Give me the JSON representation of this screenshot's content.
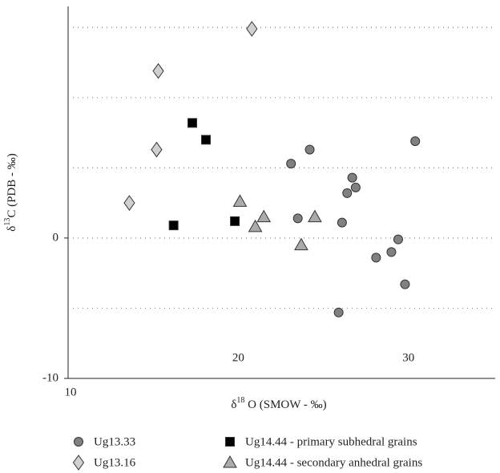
{
  "chart_data": {
    "type": "scatter",
    "x_label": {
      "prefix": "δ",
      "sup": "18",
      "rest": " O (SMOW - ‰)"
    },
    "y_label": {
      "prefix": "δ",
      "sup": "13",
      "rest": "C (PDB - ‰)"
    },
    "xlim": [
      10,
      35.1
    ],
    "ylim": [
      -10,
      16.5
    ],
    "xticks": [
      10,
      20,
      30
    ],
    "yticks": [
      -10,
      0
    ],
    "ygrid": [
      -5,
      0,
      5,
      10,
      15
    ],
    "series": [
      {
        "name": "Ug13.33",
        "marker": "circle",
        "color": "#808080",
        "x": [
          23.1,
          24.2,
          30.4,
          26.7,
          26.9,
          26.4,
          23.5,
          26.1,
          29.4,
          29.0,
          28.1,
          29.8,
          25.9
        ],
        "values": [
          5.3,
          6.3,
          6.9,
          4.3,
          3.6,
          3.2,
          1.4,
          1.1,
          -0.1,
          -1.0,
          -1.4,
          -3.3,
          -5.3
        ]
      },
      {
        "name": "Ug13.16",
        "marker": "diamond",
        "color": "#d0d0d0",
        "x": [
          20.8,
          15.3,
          15.2,
          13.6
        ],
        "values": [
          14.9,
          11.9,
          6.3,
          2.5
        ]
      },
      {
        "name": "Ug14.44 - primary subhedral grains",
        "marker": "square",
        "color": "#000000",
        "x": [
          17.3,
          18.1,
          16.2,
          19.8
        ],
        "values": [
          8.2,
          7.0,
          0.9,
          1.2
        ]
      },
      {
        "name": "Ug14.44 - secondary anhedral grains",
        "marker": "triangle",
        "color": "#ababab",
        "x": [
          20.1,
          21.5,
          21.0,
          24.5,
          23.7
        ],
        "values": [
          2.6,
          1.5,
          0.8,
          1.5,
          -0.5
        ]
      }
    ]
  }
}
